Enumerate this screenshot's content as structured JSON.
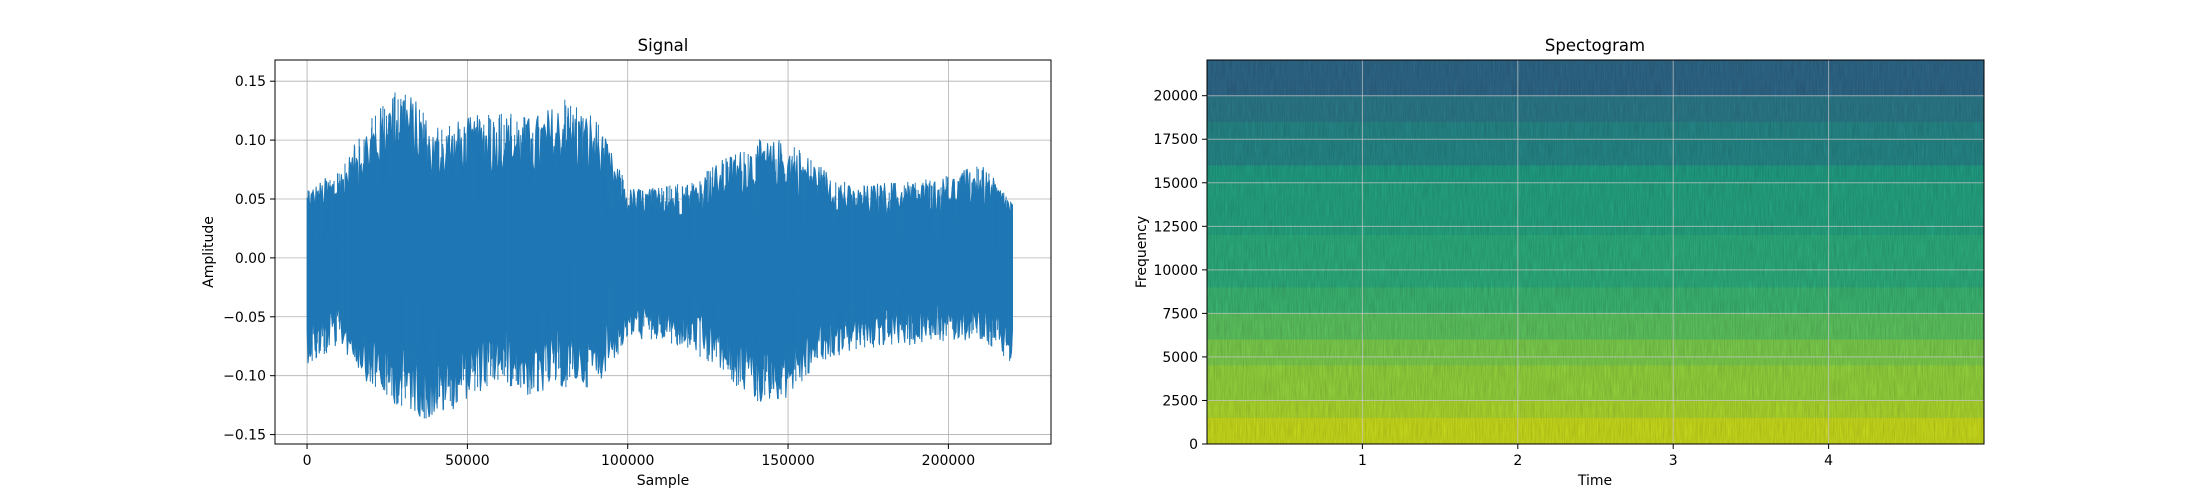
{
  "chart_data": [
    {
      "type": "line",
      "title": "Signal",
      "xlabel": "Sample",
      "ylabel": "Amplitude",
      "xlim": [
        -10000,
        232000
      ],
      "ylim": [
        -0.158,
        0.168
      ],
      "xticks": [
        0,
        50000,
        100000,
        150000,
        200000
      ],
      "xtick_labels": [
        "0",
        "50000",
        "100000",
        "150000",
        "200000"
      ],
      "yticks": [
        -0.15,
        -0.1,
        -0.05,
        0.0,
        0.05,
        0.1,
        0.15
      ],
      "ytick_labels": [
        "−0.15",
        "−0.10",
        "−0.05",
        "0.00",
        "0.05",
        "0.10",
        "0.15"
      ],
      "grid": true,
      "series": [
        {
          "color": "#1f77b4",
          "x": [
            0,
            10000,
            20000,
            30000,
            40000,
            50000,
            60000,
            70000,
            80000,
            90000,
            100000,
            110000,
            120000,
            130000,
            140000,
            150000,
            160000,
            170000,
            180000,
            190000,
            200000,
            210000,
            220000
          ],
          "upper": [
            0.06,
            0.075,
            0.12,
            0.15,
            0.11,
            0.12,
            0.125,
            0.12,
            0.135,
            0.12,
            0.06,
            0.06,
            0.065,
            0.085,
            0.1,
            0.1,
            0.08,
            0.06,
            0.065,
            0.065,
            0.07,
            0.08,
            0.05
          ],
          "lower": [
            -0.09,
            -0.075,
            -0.11,
            -0.13,
            -0.14,
            -0.12,
            -0.105,
            -0.12,
            -0.11,
            -0.11,
            -0.07,
            -0.07,
            -0.08,
            -0.1,
            -0.125,
            -0.12,
            -0.09,
            -0.08,
            -0.075,
            -0.075,
            -0.07,
            -0.07,
            -0.09
          ]
        }
      ]
    },
    {
      "type": "heatmap",
      "title": "Spectogram",
      "xlabel": "Time",
      "ylabel": "Frequency",
      "xlim": [
        0,
        5.0
      ],
      "ylim": [
        0,
        22050
      ],
      "xticks": [
        1,
        2,
        3,
        4
      ],
      "xtick_labels": [
        "1",
        "2",
        "3",
        "4"
      ],
      "yticks": [
        0,
        2500,
        5000,
        7500,
        10000,
        12500,
        15000,
        17500,
        20000
      ],
      "ytick_labels": [
        "0",
        "2500",
        "5000",
        "7500",
        "10000",
        "12500",
        "15000",
        "17500",
        "20000"
      ],
      "grid": true,
      "colormap": "viridis",
      "bands": [
        {
          "from": 20000,
          "to": 22050,
          "color": "#2f6a8c"
        },
        {
          "from": 18500,
          "to": 20000,
          "color": "#2c7c8c"
        },
        {
          "from": 16000,
          "to": 18500,
          "color": "#268a8b"
        },
        {
          "from": 15000,
          "to": 16000,
          "color": "#21a286"
        },
        {
          "from": 12000,
          "to": 15000,
          "color": "#25a884"
        },
        {
          "from": 9000,
          "to": 12000,
          "color": "#2db17f"
        },
        {
          "from": 7500,
          "to": 9000,
          "color": "#3cba74"
        },
        {
          "from": 6000,
          "to": 7500,
          "color": "#5ec861"
        },
        {
          "from": 4500,
          "to": 6000,
          "color": "#7fd24e"
        },
        {
          "from": 2500,
          "to": 4500,
          "color": "#97d83e"
        },
        {
          "from": 1500,
          "to": 2500,
          "color": "#b0dd2e"
        },
        {
          "from": 0,
          "to": 1500,
          "color": "#cfe11c"
        }
      ]
    }
  ]
}
